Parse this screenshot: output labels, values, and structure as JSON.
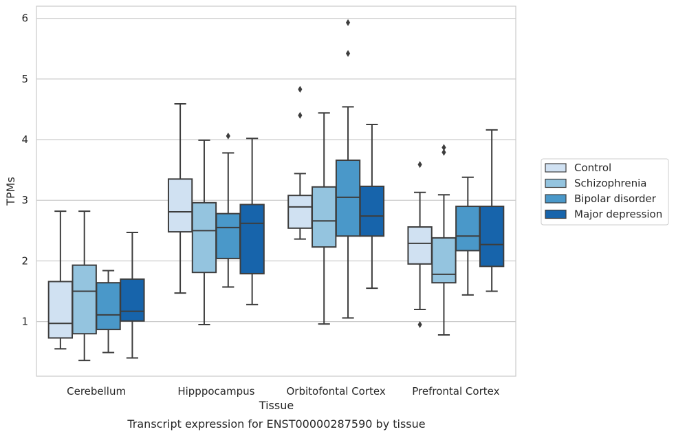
{
  "chart_data": {
    "type": "box",
    "title": "",
    "xlabel": "Tissue",
    "ylabel": "TPMs",
    "caption": "Transcript expression for ENST00000287590 by tissue",
    "categories": [
      "Cerebellum",
      "Hipppocampus",
      "Orbitofontal Cortex",
      "Prefrontal Cortex"
    ],
    "yticks": [
      1,
      2,
      3,
      4,
      5,
      6
    ],
    "ylim": [
      0.1,
      6.2
    ],
    "grid": "horizontal",
    "legend_position": "center-right",
    "series": [
      {
        "name": "Control",
        "color": "#d0e1f2",
        "boxes": [
          {
            "whislo": 0.55,
            "q1": 0.73,
            "med": 0.97,
            "q3": 1.66,
            "whishi": 2.82,
            "fliers": []
          },
          {
            "whislo": 1.47,
            "q1": 2.48,
            "med": 2.81,
            "q3": 3.35,
            "whishi": 4.59,
            "fliers": []
          },
          {
            "whislo": 2.36,
            "q1": 2.54,
            "med": 2.89,
            "q3": 3.08,
            "whishi": 3.44,
            "fliers": [
              4.4,
              4.83
            ]
          },
          {
            "whislo": 1.2,
            "q1": 1.95,
            "med": 2.29,
            "q3": 2.56,
            "whishi": 3.13,
            "fliers": [
              0.95,
              3.59
            ]
          }
        ]
      },
      {
        "name": "Schizophrenia",
        "color": "#94c4df",
        "boxes": [
          {
            "whislo": 0.36,
            "q1": 0.8,
            "med": 1.5,
            "q3": 1.93,
            "whishi": 2.82,
            "fliers": []
          },
          {
            "whislo": 0.95,
            "q1": 1.81,
            "med": 2.5,
            "q3": 2.96,
            "whishi": 3.99,
            "fliers": []
          },
          {
            "whislo": 0.96,
            "q1": 2.23,
            "med": 2.66,
            "q3": 3.22,
            "whishi": 4.44,
            "fliers": []
          },
          {
            "whislo": 0.78,
            "q1": 1.64,
            "med": 1.78,
            "q3": 2.38,
            "whishi": 3.09,
            "fliers": [
              3.79,
              3.87
            ]
          }
        ]
      },
      {
        "name": "Bipolar disorder",
        "color": "#4a98c9",
        "boxes": [
          {
            "whislo": 0.49,
            "q1": 0.87,
            "med": 1.11,
            "q3": 1.64,
            "whishi": 1.84,
            "fliers": []
          },
          {
            "whislo": 1.57,
            "q1": 2.04,
            "med": 2.55,
            "q3": 2.78,
            "whishi": 3.78,
            "fliers": [
              4.06
            ]
          },
          {
            "whislo": 1.06,
            "q1": 2.41,
            "med": 3.05,
            "q3": 3.66,
            "whishi": 4.54,
            "fliers": [
              5.42,
              5.93
            ]
          },
          {
            "whislo": 1.44,
            "q1": 2.17,
            "med": 2.41,
            "q3": 2.9,
            "whishi": 3.38,
            "fliers": []
          }
        ]
      },
      {
        "name": "Major depression",
        "color": "#1764ab",
        "boxes": [
          {
            "whislo": 0.4,
            "q1": 1.01,
            "med": 1.17,
            "q3": 1.7,
            "whishi": 2.47,
            "fliers": []
          },
          {
            "whislo": 1.28,
            "q1": 1.79,
            "med": 2.62,
            "q3": 2.93,
            "whishi": 4.02,
            "fliers": []
          },
          {
            "whislo": 1.55,
            "q1": 2.41,
            "med": 2.74,
            "q3": 3.23,
            "whishi": 4.25,
            "fliers": []
          },
          {
            "whislo": 1.5,
            "q1": 1.91,
            "med": 2.27,
            "q3": 2.9,
            "whishi": 4.16,
            "fliers": []
          }
        ]
      }
    ]
  }
}
